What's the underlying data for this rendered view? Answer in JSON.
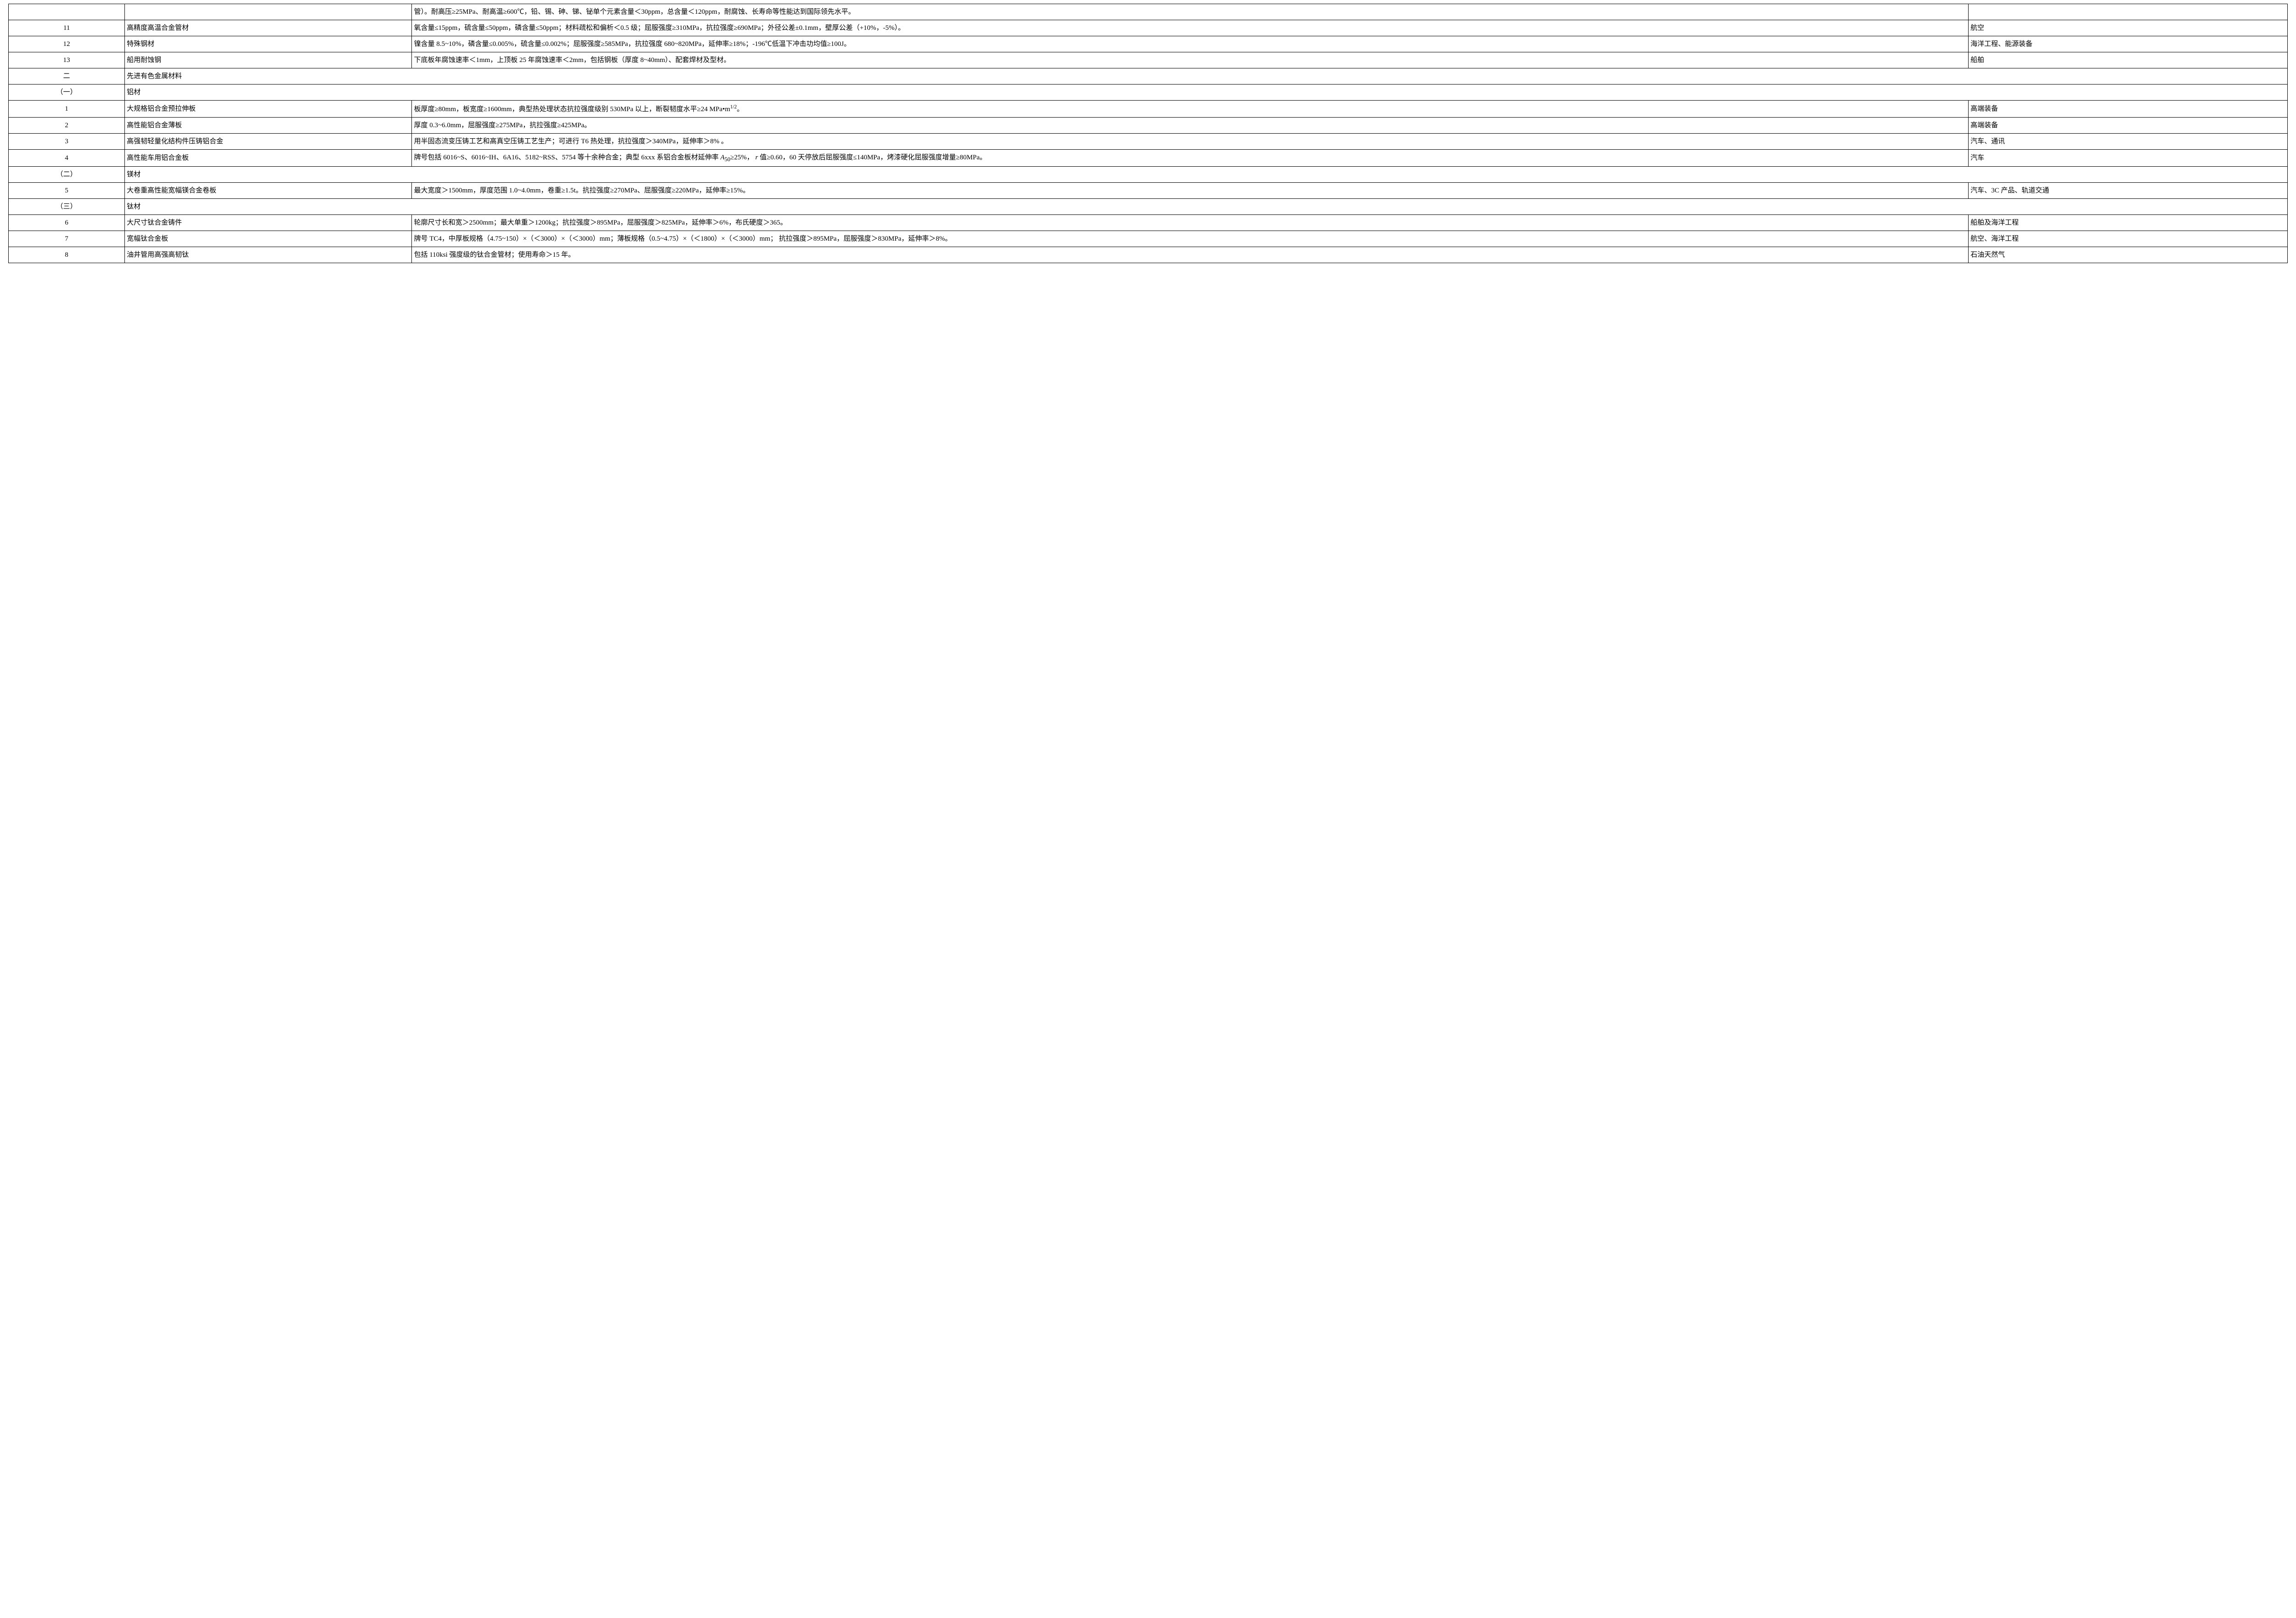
{
  "table": {
    "border_color": "#000000",
    "background_color": "#ffffff",
    "font_family": "SimSun",
    "font_size_pt": 11,
    "column_widths_pct": [
      5.1,
      12.6,
      68.3,
      14.0
    ],
    "rows": [
      {
        "type": "data",
        "idx": "",
        "name": "",
        "spec": "管）。耐高压≥25MPa、耐高温≥600℃，铅、锡、砷、锑、铋单个元素含量＜30ppm，总含量＜120ppm，耐腐蚀、长寿命等性能达到国际领先水平。",
        "app": ""
      },
      {
        "type": "data",
        "idx": "11",
        "name": "高精度高温合金管材",
        "spec": "氧含量≤15ppm，硫含量≤50ppm，磷含量≤50ppm；材料疏松和偏析＜0.5 级；屈服强度≥310MPa，抗拉强度≥690MPa；外径公差±0.1mm，壁厚公差（+10%，-5%）。",
        "app": "航空"
      },
      {
        "type": "data",
        "idx": "12",
        "name": "特殊钢材",
        "spec": "镍含量 8.5~10%，磷含量≤0.005%，硫含量≤0.002%；屈服强度≥585MPa，抗拉强度 680~820MPa，延伸率≥18%；-196℃低温下冲击功均值≥100J。",
        "app": "海洋工程、能源装备"
      },
      {
        "type": "data",
        "idx": "13",
        "name": "船用耐蚀钢",
        "spec": "下底板年腐蚀速率＜1mm，上顶板 25 年腐蚀速率＜2mm，包括钢板（厚度 8~40mm）、配套焊材及型材。",
        "app": "船舶"
      },
      {
        "type": "section",
        "idx": "二",
        "label": "先进有色金属材料"
      },
      {
        "type": "section",
        "idx": "（一）",
        "label": "铝材"
      },
      {
        "type": "data",
        "idx": "1",
        "name": "大规格铝合金预拉伸板",
        "spec_html": "板厚度≥80mm，板宽度≥1600mm，典型热处理状态抗拉强度级别 530MPa 以上，断裂韧度水平≥24 MPa•m<sup>1/2</sup>。",
        "spec": "板厚度≥80mm，板宽度≥1600mm，典型热处理状态抗拉强度级别 530MPa 以上，断裂韧度水平≥24 MPa•m^1/2。",
        "app": "高端装备"
      },
      {
        "type": "data",
        "idx": "2",
        "name": "高性能铝合金薄板",
        "spec": "厚度 0.3~6.0mm，屈服强度≥275MPa，抗拉强度≥425MPa。",
        "app": "高端装备"
      },
      {
        "type": "data",
        "idx": "3",
        "name": "高强韧轻量化结构件压铸铝合金",
        "spec": "用半固态流变压铸工艺和高真空压铸工艺生产；可进行 T6 热处理，抗拉强度＞340MPa，延伸率＞8% 。",
        "app": "汽车、通讯"
      },
      {
        "type": "data",
        "idx": "4",
        "name": "高性能车用铝合金板",
        "spec_html": "牌号包括 6016~S、6016~IH、6A16、5182~RSS、5754 等十余种合金；典型 6xxx 系铝合金板材延伸率 <span class=\"ital\">A</span><sub>50</sub>≥25%，<span class=\"ital\"> r </span>值≥0.60，60 天停放后屈服强度≤140MPa，烤漆硬化屈服强度增量≥80MPa。",
        "spec": "牌号包括 6016~S、6016~IH、6A16、5182~RSS、5754 等十余种合金；典型 6xxx 系铝合金板材延伸率 A50≥25%， r 值≥0.60，60 天停放后屈服强度≤140MPa，烤漆硬化屈服强度增量≥80MPa。",
        "app": "汽车"
      },
      {
        "type": "section",
        "idx": "（二）",
        "label": "镁材"
      },
      {
        "type": "data",
        "idx": "5",
        "name": "大卷重高性能宽幅镁合金卷板",
        "spec": "最大宽度＞1500mm，厚度范围 1.0~4.0mm，卷重≥1.5t。抗拉强度≥270MPa、屈服强度≥220MPa，延伸率≥15%。",
        "app": "汽车、3C 产品、轨道交通"
      },
      {
        "type": "section",
        "idx": "（三）",
        "label": "钛材"
      },
      {
        "type": "data",
        "idx": "6",
        "name": "大尺寸钛合金铸件",
        "spec": "轮廓尺寸长和宽＞2500mm；最大单重＞1200kg；抗拉强度＞895MPa，屈服强度＞825MPa，延伸率＞6%，布氏硬度＞365。",
        "app": "船舶及海洋工程"
      },
      {
        "type": "data",
        "idx": "7",
        "name": "宽幅钛合金板",
        "spec": "牌号 TC4，中厚板规格（4.75~150）×（＜3000）×（＜3000）mm；薄板规格（0.5~4.75）×（＜1800）×（＜3000）mm； 抗拉强度＞895MPa，屈服强度＞830MPa，延伸率＞8%。",
        "app": "航空、海洋工程"
      },
      {
        "type": "data",
        "idx": "8",
        "name": "油井管用高强高韧钛",
        "spec": "包括 110ksi 强度级的钛合金管材；使用寿命＞15 年。",
        "app": "石油天然气"
      }
    ]
  }
}
